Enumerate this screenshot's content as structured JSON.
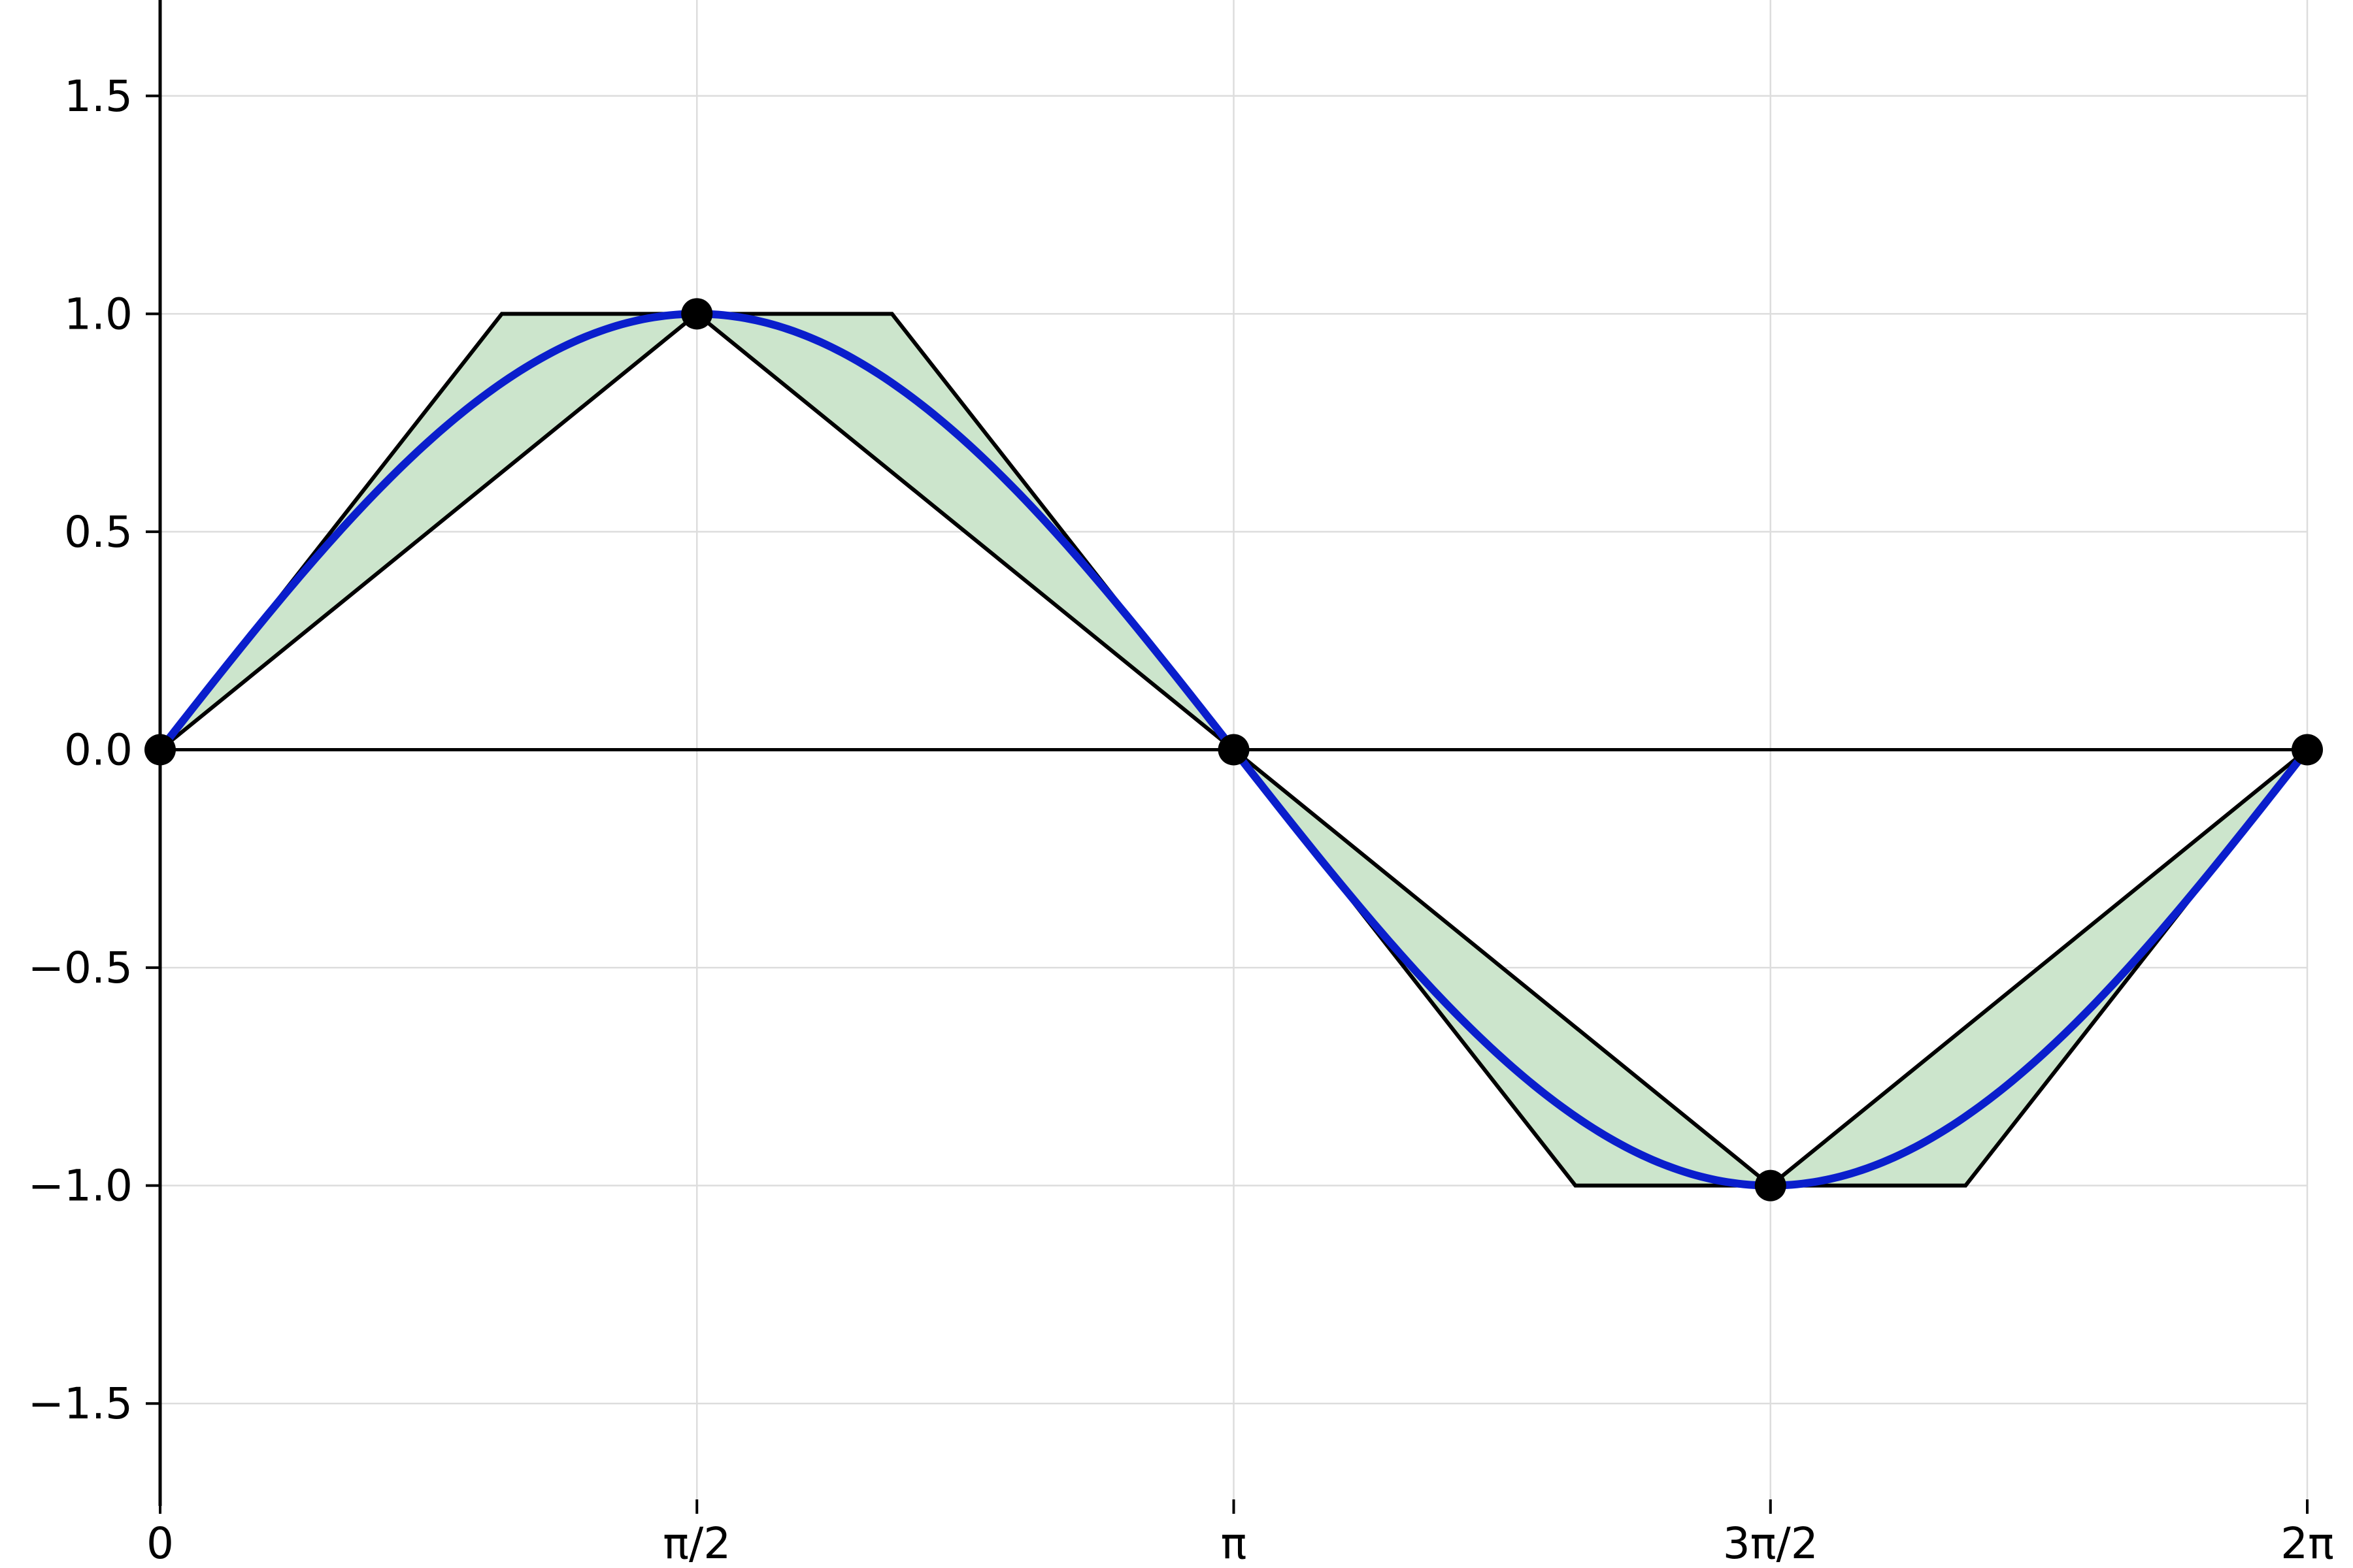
{
  "chart_data": {
    "type": "line",
    "title": "",
    "xlabel": "",
    "ylabel": "",
    "xlim": [
      0,
      6.2832
    ],
    "ylim": [
      -1.72,
      1.72
    ],
    "grid": true,
    "x_ticks": [
      {
        "value": 0,
        "label": "0"
      },
      {
        "value": 1.5708,
        "label": "π/2"
      },
      {
        "value": 3.1416,
        "label": "π"
      },
      {
        "value": 4.7124,
        "label": "3π/2"
      },
      {
        "value": 6.2832,
        "label": "2π"
      }
    ],
    "y_ticks": [
      {
        "value": 1.5,
        "label": "1.5"
      },
      {
        "value": 1.0,
        "label": "1.0"
      },
      {
        "value": 0.5,
        "label": "0.5"
      },
      {
        "value": 0.0,
        "label": "0.0"
      },
      {
        "value": -0.5,
        "label": "−0.5"
      },
      {
        "value": -1.0,
        "label": "−1.0"
      },
      {
        "value": -1.5,
        "label": "−1.5"
      }
    ],
    "curve": {
      "function": "sin(x)",
      "x_range": [
        0,
        6.2832
      ],
      "color": "#0a1ecc"
    },
    "points": [
      {
        "x": 0,
        "y": 0
      },
      {
        "x": 1.5708,
        "y": 1
      },
      {
        "x": 3.1416,
        "y": 0
      },
      {
        "x": 4.7124,
        "y": -1
      },
      {
        "x": 6.2832,
        "y": 0
      }
    ],
    "upper_envelope": [
      {
        "x": 0,
        "y": 0
      },
      {
        "x": 1.0,
        "y": 1
      },
      {
        "x": 2.1416,
        "y": 1
      },
      {
        "x": 3.1416,
        "y": 0
      },
      {
        "x": 4.7124,
        "y": -1
      },
      {
        "x": 6.2832,
        "y": 0
      }
    ],
    "lower_envelope": [
      {
        "x": 0,
        "y": 0
      },
      {
        "x": 1.5708,
        "y": 1
      },
      {
        "x": 3.1416,
        "y": 0
      },
      {
        "x": 4.1416,
        "y": -1
      },
      {
        "x": 5.2832,
        "y": -1
      },
      {
        "x": 6.2832,
        "y": 0
      }
    ],
    "fill_color": "#cce5cc",
    "envelope_color": "#000000",
    "grid_color": "#dddddd"
  }
}
